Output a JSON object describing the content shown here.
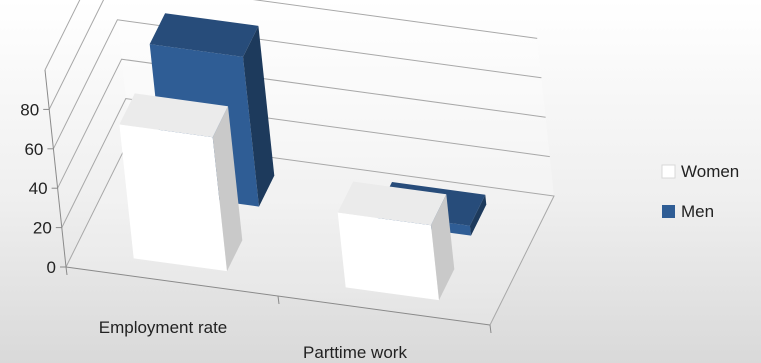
{
  "chart_data": {
    "type": "bar",
    "variant": "3d-clustered-column",
    "categories": [
      "Employment rate",
      "Parttime work"
    ],
    "series": [
      {
        "name": "Women",
        "values": [
          68,
          38
        ],
        "color": "#ffffff"
      },
      {
        "name": "Men",
        "values": [
          76,
          5
        ],
        "color": "#2f5d95"
      }
    ],
    "yticks": [
      "0",
      "20",
      "40",
      "60",
      "80"
    ],
    "ylim": [
      0,
      100
    ],
    "title": "",
    "xlabel": "",
    "ylabel": "",
    "grid": true,
    "legend_position": "right"
  }
}
